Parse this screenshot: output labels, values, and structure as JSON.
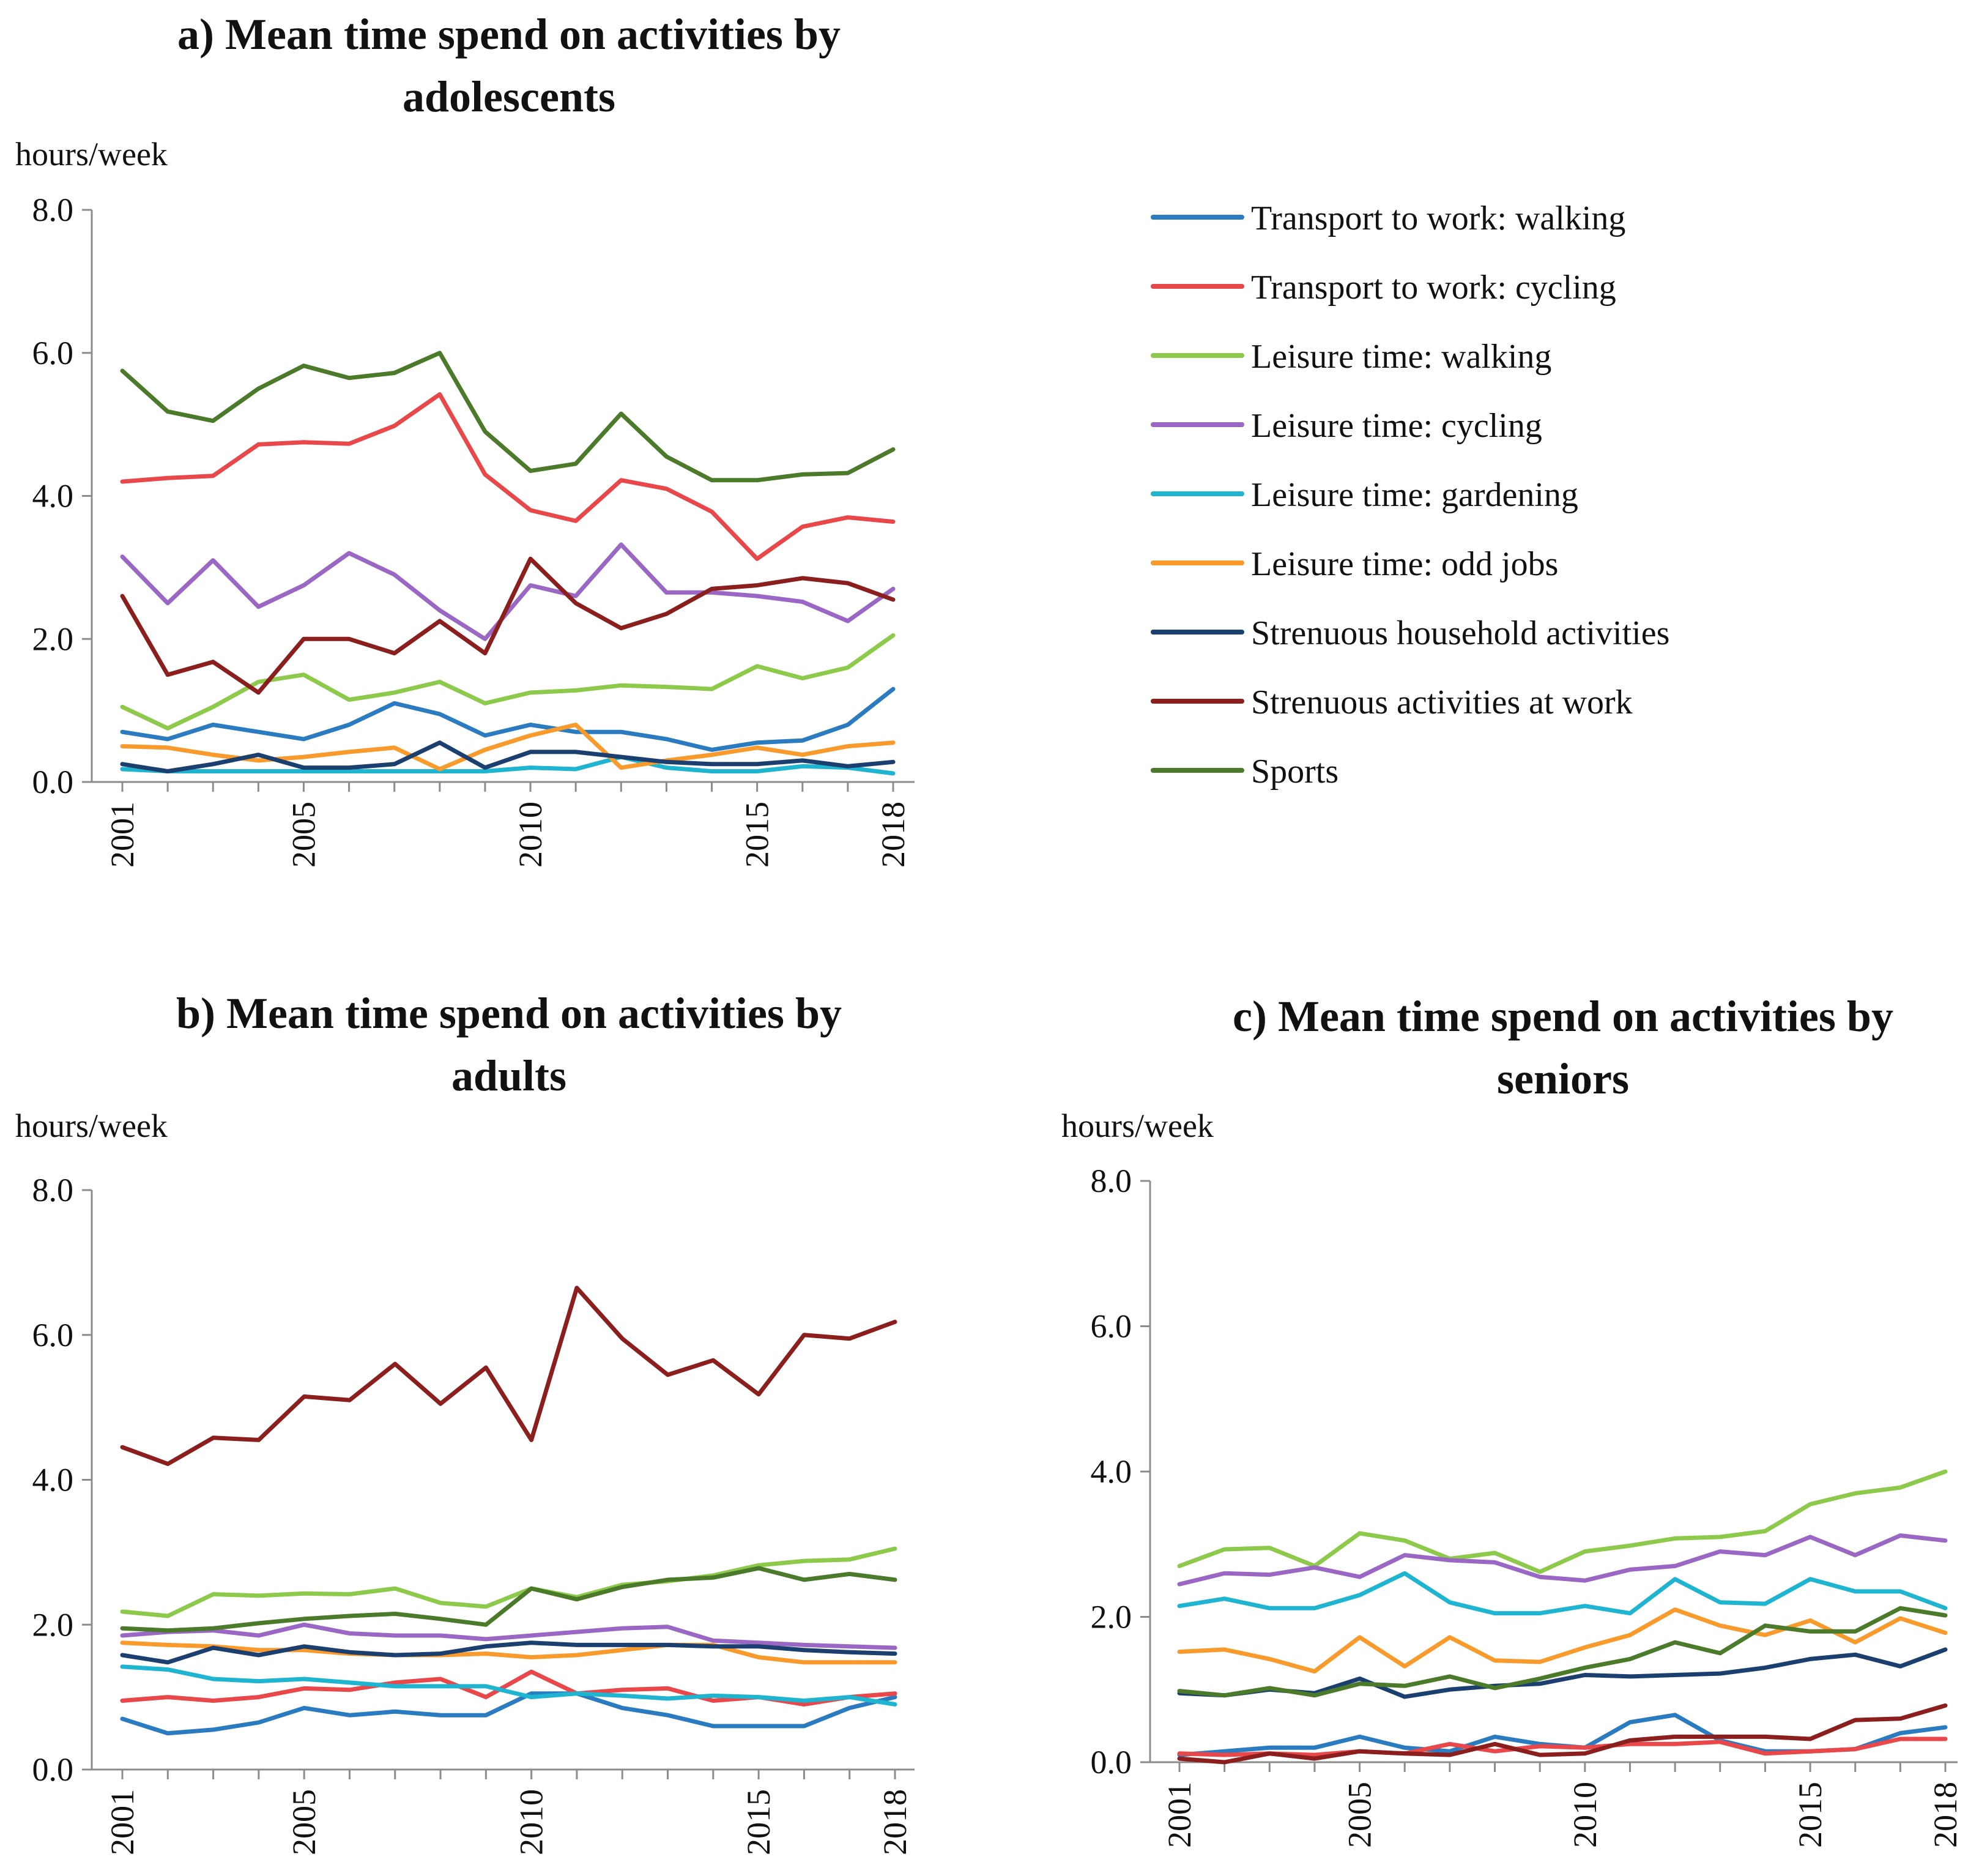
{
  "series_colors": {
    "Transport to work: walking": "#2b7bc1",
    "Transport to work: cycling": "#e8484a",
    "Leisure time: walking": "#8dca4c",
    "Leisure time: cycling": "#9a67c4",
    "Leisure time: gardening": "#1fb4cf",
    "Leisure time: odd jobs": "#f89a2c",
    "Strenuous household activities": "#1b3f6e",
    "Strenuous activities at work": "#8a1f1e",
    "Sports": "#4b7a2b"
  },
  "legend": {
    "items": [
      "Transport to work: walking",
      "Transport to work: cycling",
      "Leisure time: walking",
      "Leisure time: cycling",
      "Leisure time: gardening",
      "Leisure time: odd jobs",
      "Strenuous household activities",
      "Strenuous activities at work",
      "Sports"
    ]
  },
  "chart_data": [
    {
      "type": "line",
      "title_line1": "a) Mean time spend on activities by",
      "title_line2": "adolescents",
      "ylabel": "hours/week",
      "ylim": [
        0,
        8
      ],
      "yticks": [
        "0.0",
        "2.0",
        "4.0",
        "6.0",
        "8.0"
      ],
      "xticks": [
        "2001",
        "2005",
        "2010",
        "2015",
        "2018"
      ],
      "x": [
        2001,
        2002,
        2003,
        2004,
        2005,
        2006,
        2007,
        2008,
        2009,
        2010,
        2011,
        2012,
        2013,
        2014,
        2015,
        2016,
        2017,
        2018
      ],
      "series": [
        {
          "name": "Transport to work: walking",
          "values": [
            0.7,
            0.6,
            0.8,
            0.7,
            0.6,
            0.8,
            1.1,
            0.95,
            0.65,
            0.8,
            0.7,
            0.7,
            0.6,
            0.45,
            0.55,
            0.58,
            0.8,
            1.3
          ]
        },
        {
          "name": "Transport to work: cycling",
          "values": [
            4.2,
            4.25,
            4.28,
            4.72,
            4.75,
            4.73,
            4.98,
            5.42,
            4.3,
            3.8,
            3.65,
            4.22,
            4.1,
            3.78,
            3.12,
            3.57,
            3.7,
            3.64
          ]
        },
        {
          "name": "Leisure time: walking",
          "values": [
            1.05,
            0.75,
            1.05,
            1.4,
            1.5,
            1.15,
            1.25,
            1.4,
            1.1,
            1.25,
            1.28,
            1.35,
            1.33,
            1.3,
            1.62,
            1.45,
            1.6,
            2.05
          ]
        },
        {
          "name": "Leisure time: cycling",
          "values": [
            3.15,
            2.5,
            3.1,
            2.45,
            2.75,
            3.2,
            2.9,
            2.4,
            2.0,
            2.75,
            2.6,
            3.32,
            2.65,
            2.65,
            2.6,
            2.52,
            2.25,
            2.7
          ]
        },
        {
          "name": "Leisure time: gardening",
          "values": [
            0.18,
            0.15,
            0.15,
            0.15,
            0.15,
            0.15,
            0.15,
            0.15,
            0.15,
            0.2,
            0.18,
            0.35,
            0.2,
            0.15,
            0.15,
            0.22,
            0.2,
            0.12
          ]
        },
        {
          "name": "Leisure time: odd jobs",
          "values": [
            0.5,
            0.48,
            0.38,
            0.3,
            0.35,
            0.42,
            0.48,
            0.18,
            0.45,
            0.65,
            0.8,
            0.2,
            0.3,
            0.38,
            0.48,
            0.38,
            0.5,
            0.55
          ]
        },
        {
          "name": "Strenuous household activities",
          "values": [
            0.25,
            0.15,
            0.25,
            0.38,
            0.2,
            0.2,
            0.25,
            0.55,
            0.2,
            0.42,
            0.42,
            0.35,
            0.28,
            0.25,
            0.25,
            0.3,
            0.22,
            0.28
          ]
        },
        {
          "name": "Strenuous activities at work",
          "values": [
            2.6,
            1.5,
            1.68,
            1.25,
            2.0,
            2.0,
            1.8,
            2.25,
            1.8,
            3.12,
            2.5,
            2.15,
            2.35,
            2.7,
            2.75,
            2.85,
            2.78,
            2.55
          ]
        },
        {
          "name": "Sports",
          "values": [
            5.75,
            5.18,
            5.05,
            5.5,
            5.82,
            5.65,
            5.72,
            6.0,
            4.9,
            4.35,
            4.45,
            5.15,
            4.55,
            4.22,
            4.22,
            4.3,
            4.32,
            4.65
          ]
        }
      ]
    },
    {
      "type": "line",
      "title_line1": "b) Mean time spend on activities by",
      "title_line2": "adults",
      "ylabel": "hours/week",
      "ylim": [
        0,
        8
      ],
      "yticks": [
        "0.0",
        "2.0",
        "4.0",
        "6.0",
        "8.0"
      ],
      "xticks": [
        "2001",
        "2005",
        "2010",
        "2015",
        "2018"
      ],
      "x": [
        2001,
        2002,
        2003,
        2004,
        2005,
        2006,
        2007,
        2008,
        2009,
        2010,
        2011,
        2012,
        2013,
        2014,
        2015,
        2016,
        2017,
        2018
      ],
      "series": [
        {
          "name": "Transport to work: walking",
          "values": [
            0.7,
            0.5,
            0.55,
            0.65,
            0.85,
            0.75,
            0.8,
            0.75,
            0.75,
            1.05,
            1.05,
            0.85,
            0.75,
            0.6,
            0.6,
            0.6,
            0.85,
            1.0
          ]
        },
        {
          "name": "Transport to work: cycling",
          "values": [
            0.95,
            1.0,
            0.95,
            1.0,
            1.12,
            1.1,
            1.2,
            1.25,
            1.0,
            1.35,
            1.05,
            1.1,
            1.12,
            0.95,
            1.0,
            0.9,
            1.0,
            1.05
          ]
        },
        {
          "name": "Leisure time: walking",
          "values": [
            2.18,
            2.12,
            2.42,
            2.4,
            2.43,
            2.42,
            2.5,
            2.3,
            2.25,
            2.5,
            2.38,
            2.55,
            2.6,
            2.68,
            2.82,
            2.88,
            2.9,
            3.05
          ]
        },
        {
          "name": "Leisure time: cycling",
          "values": [
            1.85,
            1.9,
            1.92,
            1.85,
            2.0,
            1.88,
            1.85,
            1.85,
            1.8,
            1.85,
            1.9,
            1.95,
            1.97,
            1.78,
            1.75,
            1.72,
            1.7,
            1.68
          ]
        },
        {
          "name": "Leisure time: gardening",
          "values": [
            1.42,
            1.38,
            1.25,
            1.22,
            1.25,
            1.2,
            1.15,
            1.15,
            1.15,
            1.0,
            1.05,
            1.02,
            0.98,
            1.02,
            1.0,
            0.95,
            1.0,
            0.9
          ]
        },
        {
          "name": "Leisure time: odd jobs",
          "values": [
            1.75,
            1.72,
            1.7,
            1.65,
            1.65,
            1.6,
            1.58,
            1.58,
            1.6,
            1.55,
            1.58,
            1.65,
            1.72,
            1.72,
            1.55,
            1.48,
            1.48,
            1.48
          ]
        },
        {
          "name": "Strenuous household activities",
          "values": [
            1.58,
            1.48,
            1.68,
            1.58,
            1.7,
            1.62,
            1.58,
            1.6,
            1.7,
            1.75,
            1.72,
            1.72,
            1.72,
            1.7,
            1.7,
            1.65,
            1.62,
            1.6
          ]
        },
        {
          "name": "Strenuous activities at work",
          "values": [
            4.45,
            4.22,
            4.58,
            4.55,
            5.15,
            5.1,
            5.6,
            5.05,
            5.55,
            4.55,
            6.65,
            5.95,
            5.45,
            5.65,
            5.18,
            6.0,
            5.95,
            6.18
          ]
        },
        {
          "name": "Sports",
          "values": [
            1.95,
            1.92,
            1.95,
            2.02,
            2.08,
            2.12,
            2.15,
            2.08,
            2.0,
            2.5,
            2.35,
            2.52,
            2.62,
            2.65,
            2.78,
            2.62,
            2.7,
            2.62
          ]
        }
      ]
    },
    {
      "type": "line",
      "title_line1": "c) Mean time spend on activities by",
      "title_line2": "seniors",
      "ylabel": "hours/week",
      "ylim": [
        0,
        8
      ],
      "yticks": [
        "0.0",
        "2.0",
        "4.0",
        "6.0",
        "8.0"
      ],
      "xticks": [
        "2001",
        "2005",
        "2010",
        "2015",
        "2018"
      ],
      "x": [
        2001,
        2002,
        2003,
        2004,
        2005,
        2006,
        2007,
        2008,
        2009,
        2010,
        2011,
        2012,
        2013,
        2014,
        2015,
        2016,
        2017,
        2018
      ],
      "series": [
        {
          "name": "Transport to work: walking",
          "values": [
            0.1,
            0.15,
            0.2,
            0.2,
            0.35,
            0.2,
            0.15,
            0.35,
            0.25,
            0.2,
            0.55,
            0.65,
            0.3,
            0.15,
            0.15,
            0.18,
            0.4,
            0.48
          ]
        },
        {
          "name": "Transport to work: cycling",
          "values": [
            0.12,
            0.1,
            0.12,
            0.1,
            0.15,
            0.12,
            0.25,
            0.15,
            0.22,
            0.2,
            0.25,
            0.25,
            0.28,
            0.12,
            0.15,
            0.18,
            0.32,
            0.32
          ]
        },
        {
          "name": "Leisure time: walking",
          "values": [
            2.7,
            2.93,
            2.95,
            2.7,
            3.15,
            3.05,
            2.8,
            2.88,
            2.62,
            2.9,
            2.98,
            3.08,
            3.1,
            3.18,
            3.55,
            3.7,
            3.78,
            4.0
          ]
        },
        {
          "name": "Leisure time: cycling",
          "values": [
            2.45,
            2.6,
            2.58,
            2.68,
            2.55,
            2.85,
            2.78,
            2.75,
            2.55,
            2.5,
            2.65,
            2.7,
            2.9,
            2.85,
            3.1,
            2.85,
            3.12,
            3.05
          ]
        },
        {
          "name": "Leisure time: gardening",
          "values": [
            2.15,
            2.25,
            2.12,
            2.12,
            2.3,
            2.6,
            2.2,
            2.05,
            2.05,
            2.15,
            2.05,
            2.52,
            2.2,
            2.18,
            2.52,
            2.35,
            2.35,
            2.12
          ]
        },
        {
          "name": "Leisure time: odd jobs",
          "values": [
            1.52,
            1.55,
            1.42,
            1.25,
            1.72,
            1.32,
            1.72,
            1.4,
            1.38,
            1.58,
            1.75,
            2.1,
            1.88,
            1.75,
            1.95,
            1.65,
            1.98,
            1.78
          ]
        },
        {
          "name": "Strenuous household activities",
          "values": [
            0.95,
            0.92,
            1.0,
            0.95,
            1.15,
            0.9,
            1.0,
            1.05,
            1.08,
            1.2,
            1.18,
            1.2,
            1.22,
            1.3,
            1.42,
            1.48,
            1.32,
            1.55
          ]
        },
        {
          "name": "Strenuous activities at work",
          "values": [
            0.05,
            0.0,
            0.12,
            0.05,
            0.15,
            0.12,
            0.1,
            0.25,
            0.1,
            0.12,
            0.3,
            0.35,
            0.35,
            0.35,
            0.32,
            0.58,
            0.6,
            0.78
          ]
        },
        {
          "name": "Sports",
          "values": [
            0.98,
            0.92,
            1.02,
            0.92,
            1.08,
            1.05,
            1.18,
            1.02,
            1.15,
            1.3,
            1.42,
            1.65,
            1.5,
            1.88,
            1.8,
            1.8,
            2.12,
            2.02
          ]
        }
      ]
    }
  ]
}
